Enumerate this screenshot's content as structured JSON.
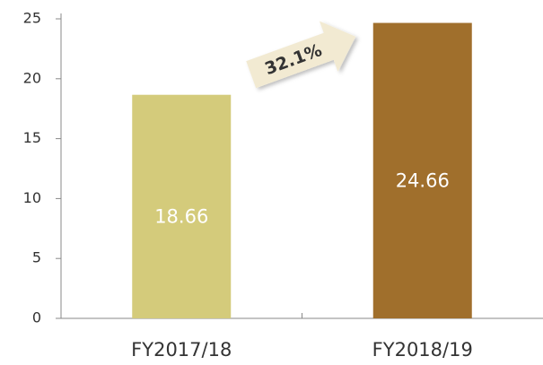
{
  "chart_data": {
    "type": "bar",
    "categories": [
      "FY2017/18",
      "FY2018/19"
    ],
    "values": [
      18.66,
      24.66
    ],
    "colors": [
      "#d4cb7b",
      "#a06f2c"
    ],
    "ylim": [
      0,
      25
    ],
    "yticks": [
      0,
      5,
      10,
      15,
      20,
      25
    ],
    "grid": false,
    "annotation": "32.1%"
  }
}
